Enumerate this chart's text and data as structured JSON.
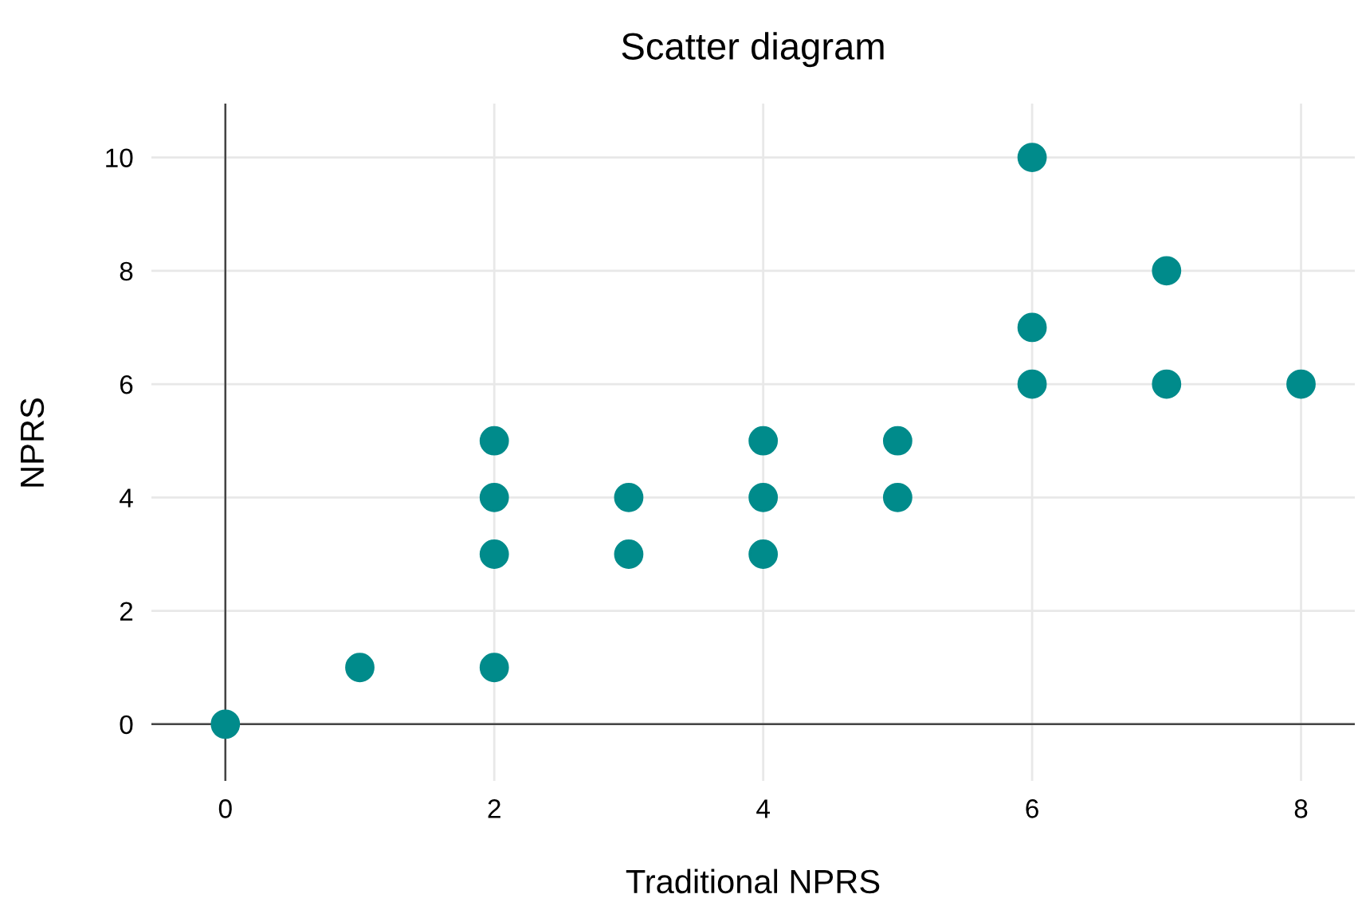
{
  "chart_data": {
    "type": "scatter",
    "title": "Scatter diagram",
    "xlabel": "Traditional NPRS",
    "ylabel": "NPRS",
    "x": [
      0,
      1,
      2,
      2,
      2,
      2,
      3,
      3,
      4,
      4,
      4,
      5,
      5,
      6,
      6,
      6,
      7,
      7,
      8
    ],
    "series": [
      {
        "color": "#008b8b",
        "values": [
          0,
          1,
          1,
          3,
          4,
          5,
          3,
          4,
          3,
          4,
          5,
          4,
          5,
          6,
          7,
          10,
          6,
          8,
          6
        ]
      }
    ],
    "xlim": [
      -0.55,
      8.4
    ],
    "ylim": [
      -1,
      10.95
    ],
    "xticks": [
      0,
      2,
      4,
      6,
      8
    ],
    "yticks": [
      0,
      2,
      4,
      6,
      8,
      10
    ],
    "grid": true,
    "marker": "circle"
  }
}
